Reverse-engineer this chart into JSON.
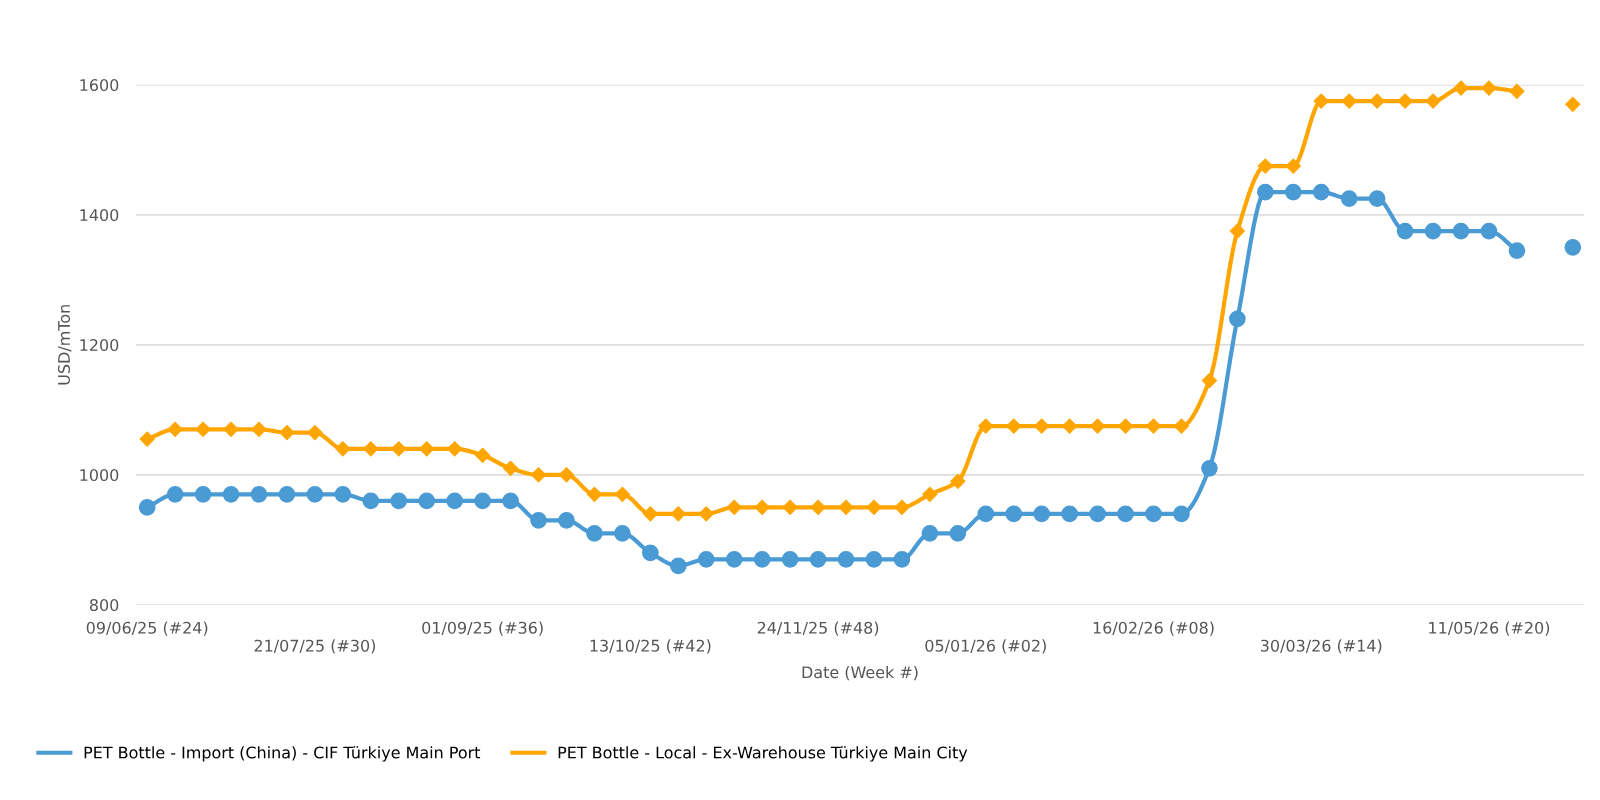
{
  "chart_data": {
    "type": "line",
    "xlabel": "Date (Week #)",
    "ylabel": "USD/mTon",
    "categories": [
      "09/06/25 (#24)",
      null,
      null,
      null,
      null,
      null,
      "21/07/25 (#30)",
      null,
      null,
      null,
      null,
      null,
      "01/09/25 (#36)",
      null,
      null,
      null,
      null,
      null,
      "13/10/25 (#42)",
      null,
      null,
      null,
      null,
      null,
      "24/11/25 (#48)",
      null,
      null,
      null,
      null,
      null,
      "05/01/26 (#02)",
      null,
      null,
      null,
      null,
      null,
      "16/02/26 (#08)",
      null,
      null,
      null,
      null,
      null,
      "30/03/26 (#14)",
      null,
      null,
      null,
      null,
      null,
      "11/05/26 (#20)",
      null,
      null,
      null
    ],
    "series": [
      {
        "name": "PET Bottle - Import (China) - CIF Türkiye Main Port",
        "color": "#4a9ad4",
        "marker": "circle",
        "values": [
          950,
          970,
          970,
          970,
          970,
          970,
          970,
          970,
          960,
          960,
          960,
          960,
          960,
          960,
          930,
          930,
          910,
          910,
          880,
          860,
          870,
          870,
          870,
          870,
          870,
          870,
          870,
          870,
          910,
          910,
          940,
          940,
          940,
          940,
          940,
          940,
          940,
          940,
          1010,
          1240,
          1435,
          1435,
          1435,
          1425,
          1425,
          1375,
          1375,
          1375,
          1375,
          1345,
          null,
          1350
        ]
      },
      {
        "name": "PET Bottle - Local - Ex-Warehouse Türkiye Main City",
        "color": "#ffa500",
        "marker": "diamond",
        "values": [
          1055,
          1070,
          1070,
          1070,
          1070,
          1065,
          1065,
          1040,
          1040,
          1040,
          1040,
          1040,
          1030,
          1010,
          1000,
          1000,
          970,
          970,
          940,
          940,
          940,
          950,
          950,
          950,
          950,
          950,
          950,
          950,
          970,
          990,
          1075,
          1075,
          1075,
          1075,
          1075,
          1075,
          1075,
          1075,
          1145,
          1375,
          1475,
          1475,
          1575,
          1575,
          1575,
          1575,
          1575,
          1595,
          1595,
          1590,
          null,
          1570
        ]
      }
    ],
    "ylim": [
      800,
      1600
    ],
    "yticks": [
      800,
      1000,
      1200,
      1400,
      1600
    ],
    "grid": "y",
    "legend": "bottom left",
    "line_style": "solid"
  }
}
